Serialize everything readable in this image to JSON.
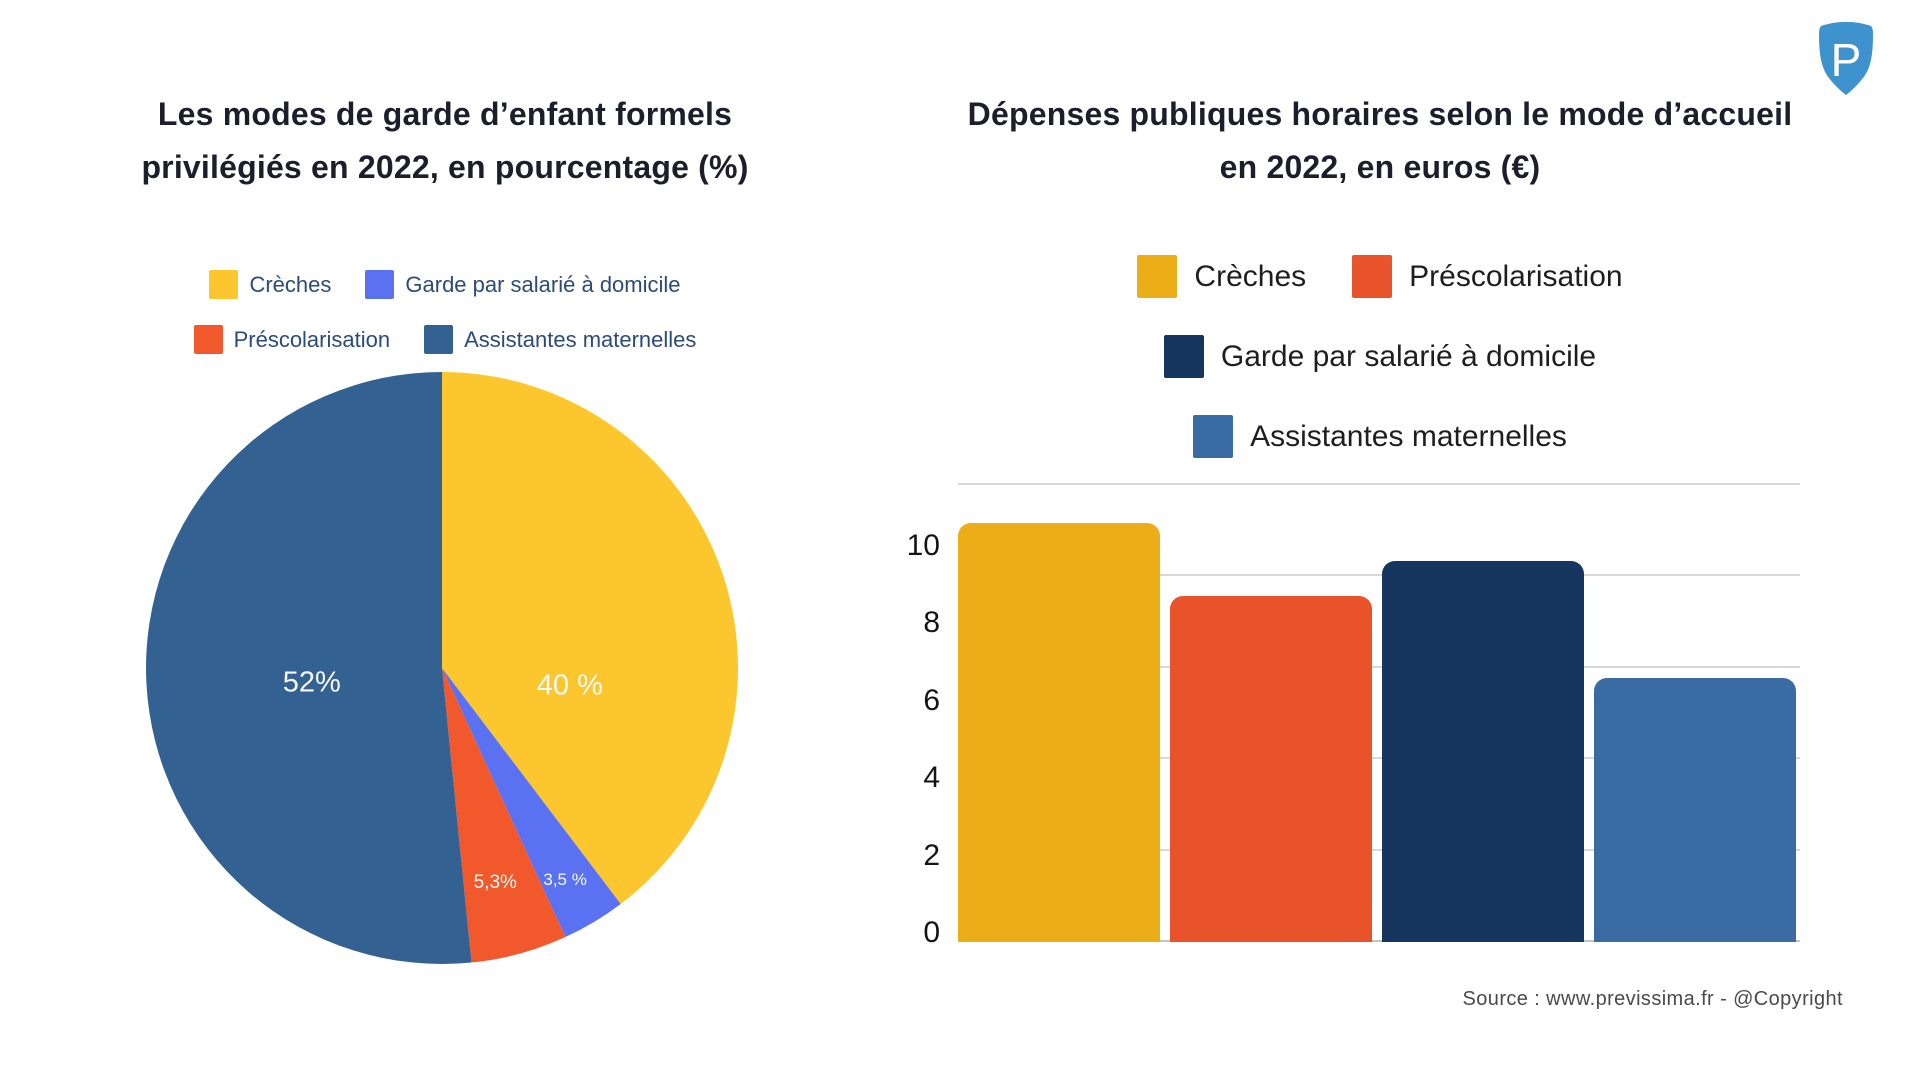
{
  "page": {
    "background": "#ffffff"
  },
  "logo": {
    "letter": "P",
    "color": "#3e93ce"
  },
  "source_text": "Source : www.previssima.fr - @Copyright",
  "chart_data": [
    {
      "type": "pie",
      "title": "Les modes de garde d’enfant formels privilégiés en 2022, en pourcentage (%)",
      "title_lines": [
        "Les modes de garde d’enfant formels",
        "privilégiés en 2022, en pourcentage (%)"
      ],
      "labels": [
        "Crèches",
        "Garde par salarié à domicile",
        "Préscolarisation",
        "Assistantes maternelles"
      ],
      "values": [
        40,
        3.5,
        5.3,
        52
      ],
      "value_labels": [
        "40 %",
        "3,5 %",
        "5,3%",
        "52%"
      ],
      "colors": [
        "#fcc72e",
        "#5a72f2",
        "#f1582b",
        "#336292"
      ],
      "legend": [
        "Crèches",
        "Garde par salarié à domicile",
        "Préscolarisation",
        "Assistantes maternelles"
      ],
      "legend_position": "top",
      "start_angle_deg": 0,
      "direction": "clockwise"
    },
    {
      "type": "bar",
      "title": "Dépenses publiques horaires selon le mode d’accueil en 2022, en euros (€)",
      "title_lines": [
        "Dépenses publiques horaires selon le mode d’accueil",
        "en 2022, en euros (€)"
      ],
      "categories": [
        "Crèches",
        "Préscolarisation",
        "Garde par salarié à domicile",
        "Assistantes maternelles"
      ],
      "values": [
        10.6,
        8.7,
        9.6,
        6.6
      ],
      "colors": [
        "#ebad18",
        "#e8532b",
        "#17365f",
        "#3a6ba3"
      ],
      "legend": [
        "Crèches",
        "Préscolarisation",
        "Garde par salarié à domicile",
        "Assistantes maternelles"
      ],
      "legend_position": "top",
      "xlabel": "",
      "ylabel": "",
      "y_ticks": [
        0,
        2,
        4,
        6,
        8,
        10
      ],
      "ylim": [
        0,
        11.6
      ],
      "grid": true
    }
  ]
}
